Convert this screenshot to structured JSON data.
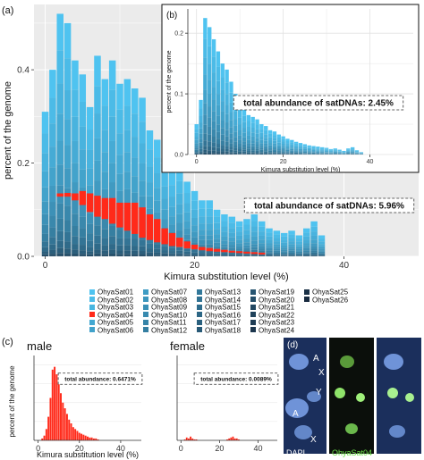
{
  "panels": {
    "a": "(a)",
    "b": "(b)",
    "c": "(c)",
    "d": "(d)"
  },
  "chart_data": [
    {
      "panel": "a",
      "type": "bar",
      "stacked": true,
      "xlabel": "Kimura substitution level (%)",
      "ylabel": "percent of the genome",
      "xticks": [
        0,
        20,
        40
      ],
      "yticks": [
        "0.0",
        "0.2",
        "0.4"
      ],
      "xlim": [
        -1.5,
        50
      ],
      "ylim": [
        0,
        0.54
      ],
      "annotation": "total abundance of satDNAs: 5.96%",
      "x": [
        0,
        1,
        2,
        3,
        4,
        5,
        6,
        7,
        8,
        9,
        10,
        11,
        12,
        13,
        14,
        15,
        16,
        17,
        18,
        19,
        20,
        21,
        22,
        23,
        24,
        25,
        26,
        27,
        28,
        29,
        30,
        31,
        32,
        33,
        34,
        35,
        36,
        37
      ],
      "values": [
        0.31,
        0.4,
        0.52,
        0.5,
        0.42,
        0.39,
        0.32,
        0.43,
        0.38,
        0.42,
        0.37,
        0.38,
        0.36,
        0.34,
        0.27,
        0.25,
        0.21,
        0.18,
        0.19,
        0.16,
        0.14,
        0.12,
        0.12,
        0.1,
        0.09,
        0.085,
        0.075,
        0.08,
        0.09,
        0.075,
        0.06,
        0.055,
        0.05,
        0.055,
        0.045,
        0.06,
        0.075,
        0.045
      ],
      "highlight_series": {
        "name": "OhyaSat04",
        "color": "#ff2a1a",
        "bands": [
          {
            "x": 2,
            "lo": 0.128,
            "hi": 0.135
          },
          {
            "x": 3,
            "lo": 0.128,
            "hi": 0.136
          },
          {
            "x": 4,
            "lo": 0.12,
            "hi": 0.135
          },
          {
            "x": 5,
            "lo": 0.11,
            "hi": 0.14
          },
          {
            "x": 6,
            "lo": 0.095,
            "hi": 0.135
          },
          {
            "x": 7,
            "lo": 0.085,
            "hi": 0.13
          },
          {
            "x": 8,
            "lo": 0.08,
            "hi": 0.125
          },
          {
            "x": 9,
            "lo": 0.07,
            "hi": 0.125
          },
          {
            "x": 10,
            "lo": 0.062,
            "hi": 0.115
          },
          {
            "x": 11,
            "lo": 0.055,
            "hi": 0.115
          },
          {
            "x": 12,
            "lo": 0.048,
            "hi": 0.115
          },
          {
            "x": 13,
            "lo": 0.04,
            "hi": 0.105
          },
          {
            "x": 14,
            "lo": 0.035,
            "hi": 0.09
          },
          {
            "x": 15,
            "lo": 0.03,
            "hi": 0.08
          },
          {
            "x": 16,
            "lo": 0.026,
            "hi": 0.06
          },
          {
            "x": 17,
            "lo": 0.022,
            "hi": 0.05
          },
          {
            "x": 18,
            "lo": 0.02,
            "hi": 0.04
          },
          {
            "x": 19,
            "lo": 0.017,
            "hi": 0.032
          },
          {
            "x": 20,
            "lo": 0.015,
            "hi": 0.025
          },
          {
            "x": 21,
            "lo": 0.013,
            "hi": 0.02
          },
          {
            "x": 22,
            "lo": 0.011,
            "hi": 0.018
          },
          {
            "x": 23,
            "lo": 0.01,
            "hi": 0.016
          },
          {
            "x": 24,
            "lo": 0.009,
            "hi": 0.014
          },
          {
            "x": 25,
            "lo": 0.008,
            "hi": 0.012
          },
          {
            "x": 26,
            "lo": 0.007,
            "hi": 0.011
          },
          {
            "x": 27,
            "lo": 0.006,
            "hi": 0.01
          },
          {
            "x": 28,
            "lo": 0.005,
            "hi": 0.009
          },
          {
            "x": 29,
            "lo": 0.004,
            "hi": 0.008
          }
        ]
      },
      "legend": [
        {
          "name": "OhyaSat01",
          "color": "#4fc3f0"
        },
        {
          "name": "OhyaSat02",
          "color": "#4cbde9"
        },
        {
          "name": "OhyaSat03",
          "color": "#48b6e1"
        },
        {
          "name": "OhyaSat04",
          "color": "#ff2a1a"
        },
        {
          "name": "OhyaSat05",
          "color": "#43a8d2"
        },
        {
          "name": "OhyaSat06",
          "color": "#41a2cb"
        },
        {
          "name": "OhyaSat07",
          "color": "#3f9cc4"
        },
        {
          "name": "OhyaSat08",
          "color": "#3c96bd"
        },
        {
          "name": "OhyaSat09",
          "color": "#3a90b6"
        },
        {
          "name": "OhyaSat10",
          "color": "#388aaf"
        },
        {
          "name": "OhyaSat11",
          "color": "#3684a8"
        },
        {
          "name": "OhyaSat12",
          "color": "#347ea1"
        },
        {
          "name": "OhyaSat13",
          "color": "#32789a"
        },
        {
          "name": "OhyaSat14",
          "color": "#307293"
        },
        {
          "name": "OhyaSat15",
          "color": "#2e6c8c"
        },
        {
          "name": "OhyaSat16",
          "color": "#2c6685"
        },
        {
          "name": "OhyaSat17",
          "color": "#2a607e"
        },
        {
          "name": "OhyaSat18",
          "color": "#285a77"
        },
        {
          "name": "OhyaSat19",
          "color": "#265470"
        },
        {
          "name": "OhyaSat20",
          "color": "#244e69"
        },
        {
          "name": "OhyaSat21",
          "color": "#224862"
        },
        {
          "name": "OhyaSat22",
          "color": "#20425b"
        },
        {
          "name": "OhyaSat23",
          "color": "#1e3c54"
        },
        {
          "name": "OhyaSat24",
          "color": "#1c364d"
        },
        {
          "name": "OhyaSat25",
          "color": "#1a3046"
        },
        {
          "name": "OhyaSat26",
          "color": "#182a3f"
        }
      ]
    },
    {
      "panel": "b",
      "type": "bar",
      "stacked": true,
      "xlabel": "Kimura substitution level (%)",
      "ylabel": "percent of the genome",
      "xticks": [
        0,
        20,
        40
      ],
      "yticks": [
        "0.0",
        "0.1",
        "0.2"
      ],
      "xlim": [
        -2,
        50
      ],
      "ylim": [
        0,
        0.24
      ],
      "annotation": "total abundance of satDNAs: 2.45%",
      "x": [
        0,
        1,
        2,
        3,
        4,
        5,
        6,
        7,
        8,
        9,
        10,
        11,
        12,
        13,
        14,
        15,
        16,
        17,
        18,
        19,
        20,
        21,
        22,
        23,
        24,
        25,
        26,
        27,
        28,
        29,
        30,
        31,
        32,
        33,
        34,
        35,
        36,
        37,
        38
      ],
      "values": [
        0.05,
        0.09,
        0.225,
        0.21,
        0.19,
        0.17,
        0.15,
        0.14,
        0.12,
        0.1,
        0.085,
        0.075,
        0.065,
        0.062,
        0.058,
        0.05,
        0.047,
        0.04,
        0.038,
        0.033,
        0.03,
        0.026,
        0.024,
        0.021,
        0.019,
        0.017,
        0.015,
        0.014,
        0.013,
        0.012,
        0.011,
        0.009,
        0.01,
        0.008,
        0.006,
        0.01,
        0.012,
        0.007,
        0.004
      ]
    },
    {
      "panel": "c-male",
      "type": "bar",
      "title": "male",
      "xlabel": "Kimura substitution level (%)",
      "ylabel": "percent of the genome",
      "xticks": [
        0,
        20,
        40
      ],
      "xlim": [
        -2,
        50
      ],
      "ylim": [
        0,
        0.09
      ],
      "annotation": "total abundance: 0.6471%",
      "color": "#ff2a1a",
      "x": [
        2,
        3,
        4,
        5,
        6,
        7,
        8,
        9,
        10,
        11,
        12,
        13,
        14,
        15,
        16,
        17,
        18,
        19,
        20,
        21,
        22,
        23,
        24,
        25,
        26,
        27,
        28,
        29
      ],
      "values": [
        0.002,
        0.005,
        0.012,
        0.025,
        0.045,
        0.075,
        0.078,
        0.07,
        0.06,
        0.05,
        0.04,
        0.034,
        0.028,
        0.022,
        0.018,
        0.014,
        0.012,
        0.01,
        0.008,
        0.007,
        0.006,
        0.005,
        0.004,
        0.003,
        0.003,
        0.002,
        0.002,
        0.001
      ]
    },
    {
      "panel": "c-female",
      "type": "bar",
      "title": "female",
      "xticks": [
        0,
        20,
        40
      ],
      "xlim": [
        -2,
        50
      ],
      "ylim": [
        0,
        0.09
      ],
      "annotation": "total abundance: 0.0089%",
      "color": "#ff2a1a",
      "x": [
        2,
        3,
        4,
        5,
        6,
        7,
        8,
        24,
        25,
        26,
        27,
        28,
        29,
        30
      ],
      "values": [
        0.001,
        0.003,
        0.002,
        0.004,
        0.002,
        0.001,
        0.001,
        0.001,
        0.002,
        0.003,
        0.004,
        0.002,
        0.002,
        0.001
      ]
    }
  ],
  "micrographs": {
    "labels": [
      "DAPI",
      "OhyaSat04"
    ],
    "chromosome_labels": [
      "A",
      "X",
      "Y",
      "A",
      "X"
    ]
  }
}
